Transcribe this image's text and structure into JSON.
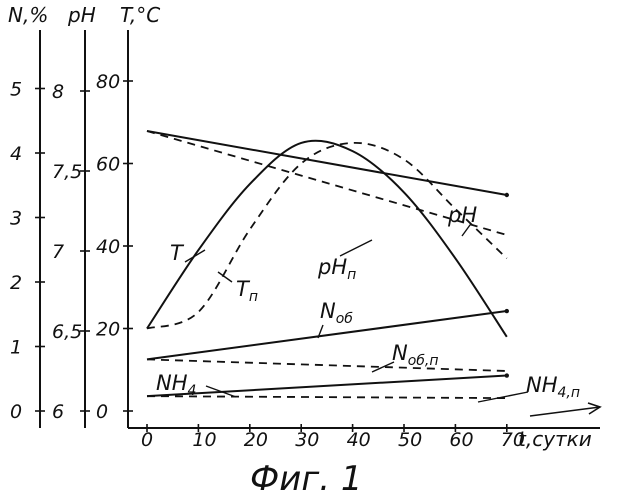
{
  "chart_data": {
    "type": "line",
    "x": [
      0,
      10,
      20,
      30,
      40,
      50,
      60,
      70
    ],
    "x_tick_labels": [
      "0",
      "10",
      "20",
      "30",
      "40",
      "50",
      "60",
      "70"
    ],
    "xlabel": "t,сутки",
    "xlim": [
      0,
      70
    ],
    "axes": {
      "N": {
        "label": "N,%",
        "ticks": [
          "0",
          "1",
          "2",
          "3",
          "4",
          "5"
        ],
        "lim": [
          0,
          5
        ]
      },
      "pH": {
        "label": "pH",
        "ticks": [
          "6",
          "6,5",
          "7",
          "7,5",
          "8"
        ],
        "lim": [
          6,
          8
        ]
      },
      "T": {
        "label": "T,°C",
        "ticks": [
          "0",
          "20",
          "40",
          "60",
          "80"
        ],
        "lim": [
          0,
          80
        ]
      }
    },
    "series": [
      {
        "name": "T",
        "sub": "",
        "axis": "T",
        "style": "solid",
        "x": [
          0,
          10,
          20,
          30,
          40,
          50,
          60,
          70
        ],
        "values": [
          20,
          39,
          55,
          65,
          63,
          53,
          37,
          18
        ]
      },
      {
        "name": "T",
        "sub": "п",
        "axis": "T",
        "style": "dashed",
        "x": [
          0,
          10,
          20,
          30,
          40,
          50,
          60,
          70
        ],
        "values": [
          20,
          24,
          44,
          60,
          65,
          61,
          49,
          37
        ]
      },
      {
        "name": "pH",
        "sub": "",
        "axis": "pH",
        "style": "solid",
        "x": [
          0,
          70
        ],
        "values": [
          7.75,
          7.35
        ]
      },
      {
        "name": "pH",
        "sub": "п",
        "axis": "pH",
        "style": "dashed",
        "x": [
          0,
          70
        ],
        "values": [
          7.75,
          7.1
        ]
      },
      {
        "name": "N",
        "sub": "об",
        "axis": "N",
        "style": "solid",
        "x": [
          0,
          70
        ],
        "values": [
          0.8,
          1.55
        ]
      },
      {
        "name": "N",
        "sub": "об,п",
        "axis": "N",
        "style": "dashed",
        "x": [
          0,
          70
        ],
        "values": [
          0.8,
          0.62
        ]
      },
      {
        "name": "NH",
        "sub": "4",
        "axis": "N",
        "style": "solid",
        "x": [
          0,
          70
        ],
        "values": [
          0.23,
          0.55
        ]
      },
      {
        "name": "NH",
        "sub": "4,п",
        "axis": "N",
        "style": "dashed",
        "x": [
          0,
          70
        ],
        "values": [
          0.23,
          0.2
        ]
      }
    ]
  },
  "caption": "Фиг. 1"
}
